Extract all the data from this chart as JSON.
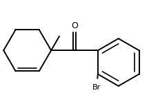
{
  "background_color": "#ffffff",
  "line_color": "#000000",
  "line_width": 1.4,
  "label_O": "O",
  "label_Br": "Br",
  "font_size_O": 9,
  "font_size_Br": 8,
  "figsize": [
    2.16,
    1.38
  ],
  "dpi": 100
}
